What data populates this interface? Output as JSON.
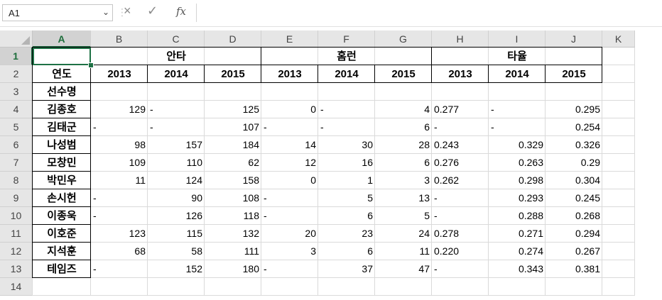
{
  "formula_bar": {
    "name_box": "A1",
    "cancel_icon": "×",
    "enter_icon": "✓",
    "fx_label": "fx",
    "formula": ""
  },
  "columns": [
    "A",
    "B",
    "C",
    "D",
    "E",
    "F",
    "G",
    "H",
    "I",
    "J",
    "K"
  ],
  "rows": [
    "1",
    "2",
    "3",
    "4",
    "5",
    "6",
    "7",
    "8",
    "9",
    "10",
    "11",
    "12",
    "13",
    "14"
  ],
  "headers": {
    "group1": "안타",
    "group2": "홈런",
    "group3": "타율",
    "row2": [
      "연도",
      "2013",
      "2014",
      "2015",
      "2013",
      "2014",
      "2015",
      "2013",
      "2014",
      "2015"
    ]
  },
  "label_row3": "선수명",
  "players": [
    {
      "name": "김종호",
      "cells": [
        "129",
        "-",
        "125",
        "0",
        "-",
        "4",
        "0.277",
        "-",
        "0.295"
      ]
    },
    {
      "name": "김태군",
      "cells": [
        "-",
        "-",
        "107",
        "-",
        "-",
        "6",
        "-",
        "-",
        "0.254"
      ]
    },
    {
      "name": "나성범",
      "cells": [
        "98",
        "157",
        "184",
        "14",
        "30",
        "28",
        "0.243",
        "0.329",
        "0.326"
      ]
    },
    {
      "name": "모창민",
      "cells": [
        "109",
        "110",
        "62",
        "12",
        "16",
        "6",
        "0.276",
        "0.263",
        "0.29"
      ]
    },
    {
      "name": "박민우",
      "cells": [
        "11",
        "124",
        "158",
        "0",
        "1",
        "3",
        "0.262",
        "0.298",
        "0.304"
      ]
    },
    {
      "name": "손시헌",
      "cells": [
        "-",
        "90",
        "108",
        "-",
        "5",
        "13",
        "-",
        "0.293",
        "0.245"
      ]
    },
    {
      "name": "이종욱",
      "cells": [
        "-",
        "126",
        "118",
        "-",
        "6",
        "5",
        "-",
        "0.288",
        "0.268"
      ]
    },
    {
      "name": "이호준",
      "cells": [
        "123",
        "115",
        "132",
        "20",
        "23",
        "24",
        "0.278",
        "0.271",
        "0.294"
      ]
    },
    {
      "name": "지석훈",
      "cells": [
        "68",
        "58",
        "111",
        "3",
        "6",
        "11",
        "0.220",
        "0.274",
        "0.267"
      ]
    },
    {
      "name": "테임즈",
      "cells": [
        "-",
        "152",
        "180",
        "-",
        "37",
        "47",
        "-",
        "0.343",
        "0.381"
      ]
    }
  ]
}
